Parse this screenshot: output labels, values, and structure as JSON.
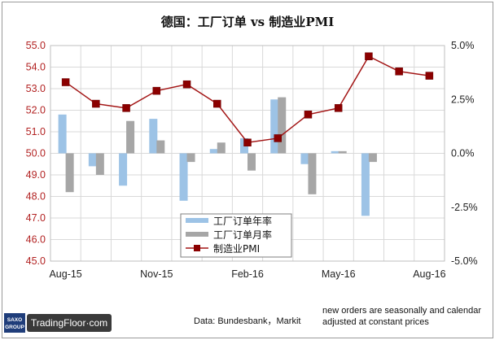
{
  "chart_data": {
    "type": "bar+line",
    "title": "德国：工厂订单 vs 制造业PMI",
    "categories": [
      "Aug-15",
      "Sep-15",
      "Oct-15",
      "Nov-15",
      "Dec-15",
      "Jan-16",
      "Feb-16",
      "Mar-16",
      "Apr-16",
      "May-16",
      "Jun-16",
      "Jul-16",
      "Aug-16"
    ],
    "x_tick_labels": [
      "Aug-15",
      "Nov-15",
      "Feb-16",
      "May-16",
      "Aug-16"
    ],
    "left_axis": {
      "ylim": [
        45.0,
        55.0
      ],
      "ticks": [
        "55.0",
        "54.0",
        "53.0",
        "52.0",
        "51.0",
        "50.0",
        "49.0",
        "48.0",
        "47.0",
        "46.0",
        "45.0"
      ]
    },
    "right_axis": {
      "ylim": [
        -5.0,
        5.0
      ],
      "ticks": [
        "5.0%",
        "2.5%",
        "0.0%",
        "-2.5%",
        "-5.0%"
      ]
    },
    "series": [
      {
        "name": "工厂订单年率",
        "type": "bar",
        "axis": "right",
        "color": "#9dc3e6",
        "values": [
          1.8,
          -0.6,
          -1.5,
          1.6,
          -2.2,
          0.2,
          0.7,
          2.5,
          -0.5,
          0.1,
          -2.9,
          null,
          null
        ]
      },
      {
        "name": "工厂订单月率",
        "type": "bar",
        "axis": "right",
        "color": "#a6a6a6",
        "values": [
          -1.8,
          -1.0,
          1.5,
          0.6,
          -0.4,
          0.5,
          -0.8,
          2.6,
          -1.9,
          0.1,
          -0.4,
          null,
          null
        ]
      },
      {
        "name": "制造业PMI",
        "type": "line",
        "axis": "left",
        "color": "#a31515",
        "values": [
          53.3,
          52.3,
          52.1,
          52.9,
          53.2,
          52.3,
          50.5,
          50.7,
          51.8,
          52.1,
          54.5,
          53.8,
          53.6
        ]
      }
    ],
    "legend_position": "bottom-center"
  },
  "footer": {
    "source": "Data: Bundesbank，Markit",
    "note_line1": "new orders are seasonally and calendar",
    "note_line2": "adjusted at constant prices"
  },
  "brand": {
    "saxo_top": "SAXO",
    "saxo_bottom": "GROUP",
    "name": "TradingFloor·com"
  }
}
